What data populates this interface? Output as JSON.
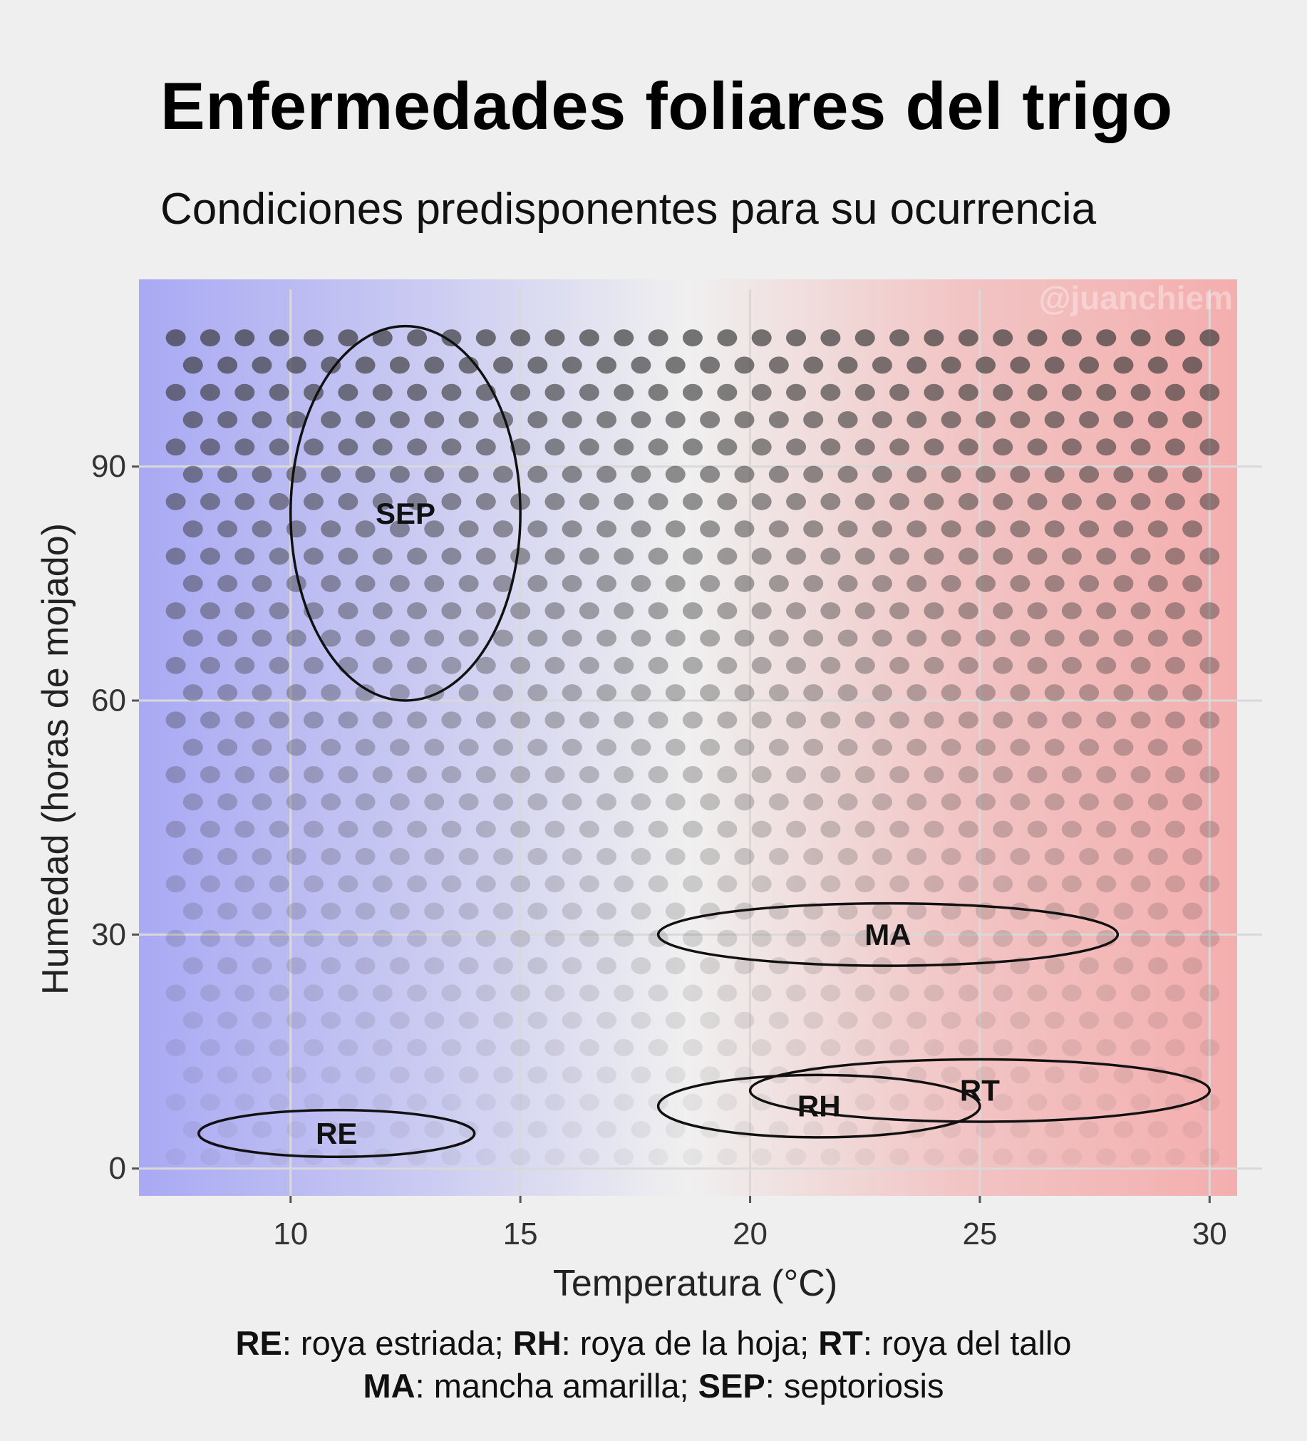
{
  "title": "Enfermedades foliares del trigo",
  "subtitle": "Condiciones predisponentes para su ocurrencia",
  "watermark": "@juanchiem",
  "chart_data": {
    "type": "scatter",
    "xlabel": "Temperatura (°C)",
    "ylabel": "Humedad (horas de mojado)",
    "xlim": [
      6.7,
      30.6
    ],
    "ylim": [
      -3.5,
      114
    ],
    "x_ticks": [
      "10",
      "15",
      "20",
      "25",
      "30"
    ],
    "y_ticks": [
      "0",
      "30",
      "60",
      "90"
    ],
    "grid": true,
    "background_gradient": [
      "#a9a9f4",
      "#c9c9f2",
      "#f0f0f0",
      "#f2c4c4",
      "#f4aeae"
    ],
    "dot_grid": {
      "x_step": 0.75,
      "y_step": 3.5,
      "x_range": [
        7.5,
        30
      ],
      "y_range": [
        1.5,
        109
      ],
      "dot_color": "#333333"
    },
    "regions": [
      {
        "label": "SEP",
        "cx": 12.5,
        "cy": 84,
        "rx": 2.5,
        "ry": 24
      },
      {
        "label": "MA",
        "cx": 23,
        "cy": 30,
        "rx": 5,
        "ry": 4
      },
      {
        "label": "RT",
        "cx": 25,
        "cy": 10,
        "rx": 5,
        "ry": 4
      },
      {
        "label": "RH",
        "cx": 21.5,
        "cy": 8,
        "rx": 3.5,
        "ry": 4
      },
      {
        "label": "RE",
        "cx": 11,
        "cy": 4.5,
        "rx": 3,
        "ry": 3
      }
    ]
  },
  "legend": {
    "line1": [
      {
        "abbr": "RE",
        "text": ": roya estriada; "
      },
      {
        "abbr": "RH",
        "text": ": roya de la hoja; "
      },
      {
        "abbr": "RT",
        "text": ": roya del tallo"
      }
    ],
    "line2": [
      {
        "abbr": "MA",
        "text": ": mancha amarilla; "
      },
      {
        "abbr": "SEP",
        "text": ": septoriosis"
      }
    ]
  }
}
